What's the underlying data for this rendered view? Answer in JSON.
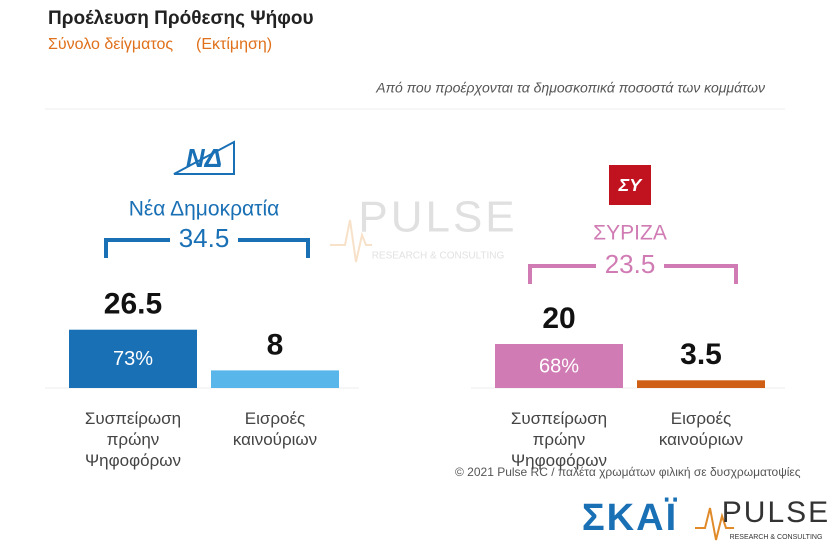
{
  "title": "Προέλευση Πρόθεσης Ψήφου",
  "subtitle": "Σύνολο δείγματος",
  "subtitle_note": "(Εκτίμηση)",
  "question": "Από που προέρχονται τα δημοσκοπικά ποσοστά των κομμάτων",
  "chart_data": [
    {
      "type": "bar",
      "title": "Νέα Δημοκρατία",
      "logo": "ΝΔ",
      "total": 34.5,
      "color": "#1a70b5",
      "categories": [
        "Συσπείρωση πρώην Ψηφοφόρων",
        "Εισροές καινούριων"
      ],
      "values": [
        26.5,
        8
      ],
      "colors": [
        "#1a70b5",
        "#58b6ea"
      ],
      "share_labels": [
        "73%",
        null
      ],
      "ylim": [
        0,
        30
      ]
    },
    {
      "type": "bar",
      "title": "ΣΥΡΙΖΑ",
      "logo": "ΣΥ",
      "total": 23.5,
      "color": "#d07bb3",
      "categories": [
        "Συσπείρωση πρώην Ψηφοφόρων",
        "Εισροές καινούριων"
      ],
      "values": [
        20,
        3.5
      ],
      "colors": [
        "#d07bb3",
        "#cf5f14"
      ],
      "share_labels": [
        "68%",
        null
      ],
      "ylim": [
        0,
        30
      ]
    }
  ],
  "footer": "© 2021 Pulse RC  /  παλέτα χρωμάτων φιλική σε δυσχρωματοψίες",
  "brands": {
    "skai": "ΣΚΑΪ",
    "pulse": "PULSE",
    "pulse_sub": "RESEARCH & CONSULTING"
  }
}
